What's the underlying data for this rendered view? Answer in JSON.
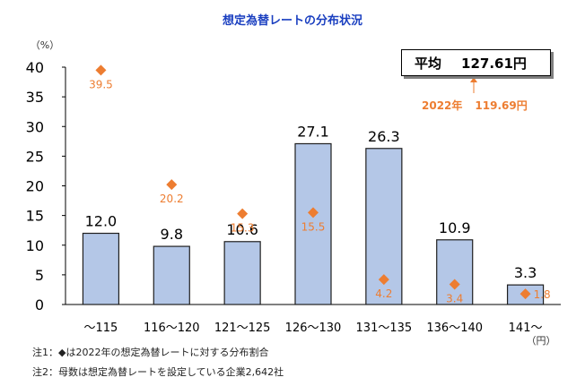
{
  "title": "想定為替レートの分布状況",
  "average": {
    "label": "平均",
    "value": "127.61円"
  },
  "previous": {
    "year": "2022年",
    "value": "119.69円"
  },
  "notes": [
    "注1：◆は2022年の想定為替レートに対する分布割合",
    "注2：母数は想定為替レートを設定している企業2,642社"
  ],
  "colors": {
    "bar": "#b4c7e7",
    "barBorder": "#1f1f1f",
    "marker": "#ed7d31",
    "title": "#1a3fc0"
  },
  "chart_data": {
    "type": "bar",
    "y_unit_label": "（%）",
    "x_unit_label": "（円）",
    "ylim": [
      0,
      40
    ],
    "yticks": [
      0,
      5,
      10,
      15,
      20,
      25,
      30,
      35,
      40
    ],
    "grid": false,
    "categories": [
      "～115",
      "116～120",
      "121～125",
      "126～130",
      "131～135",
      "136～140",
      "141～"
    ],
    "series": [
      {
        "type": "bar",
        "values": [
          12.0,
          9.8,
          10.6,
          27.1,
          26.3,
          10.9,
          3.3
        ],
        "labels": [
          "12.0",
          "9.8",
          "10.6",
          "27.1",
          "26.3",
          "10.9",
          "3.3"
        ]
      },
      {
        "type": "scatter",
        "marker": "diamond",
        "values": [
          39.5,
          20.2,
          15.3,
          15.5,
          4.2,
          3.4,
          1.8
        ],
        "labels": [
          "39.5",
          "20.2",
          "15.3",
          "15.5",
          "4.2",
          "3.4",
          "1.8"
        ]
      }
    ]
  }
}
